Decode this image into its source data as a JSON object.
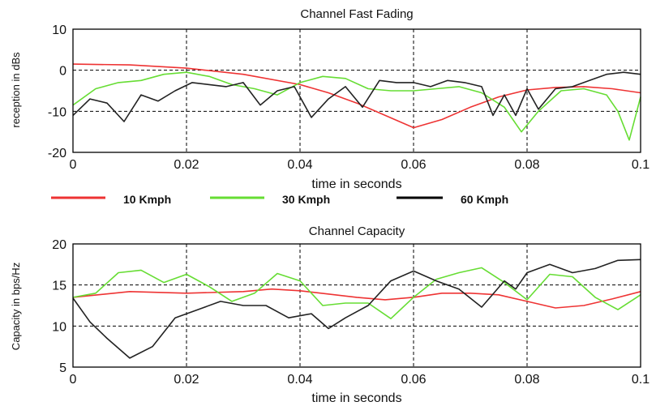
{
  "chart_data": [
    {
      "type": "line",
      "title": "Channel Fast Fading",
      "xlabel": "time in seconds",
      "ylabel": "reception in dBs",
      "xlim": [
        0,
        0.1
      ],
      "ylim": [
        -20,
        10
      ],
      "xticks": [
        "0",
        "0.02",
        "0.04",
        "0.06",
        "0.08",
        "0.1"
      ],
      "yticks": [
        "-20",
        "-10",
        "0",
        "10"
      ],
      "xtick_values": [
        0,
        0.02,
        0.04,
        0.06,
        0.08,
        0.1
      ],
      "ytick_values": [
        -20,
        -10,
        0,
        10
      ],
      "grid": true,
      "series": [
        {
          "name": "10 Kmph",
          "color": "#ee3333",
          "x": [
            0,
            0.01,
            0.02,
            0.03,
            0.04,
            0.045,
            0.05,
            0.055,
            0.06,
            0.065,
            0.07,
            0.075,
            0.08,
            0.085,
            0.09,
            0.095,
            0.1
          ],
          "y": [
            1.5,
            1.3,
            0.5,
            -1,
            -3.5,
            -5.5,
            -8,
            -11,
            -14,
            -12,
            -9,
            -6.5,
            -4.8,
            -4.2,
            -4,
            -4.5,
            -5.5
          ]
        },
        {
          "name": "30 Kmph",
          "color": "#66dd33",
          "x": [
            0,
            0.004,
            0.008,
            0.012,
            0.016,
            0.02,
            0.024,
            0.028,
            0.032,
            0.036,
            0.04,
            0.044,
            0.048,
            0.052,
            0.056,
            0.06,
            0.064,
            0.068,
            0.072,
            0.076,
            0.079,
            0.082,
            0.086,
            0.09,
            0.094,
            0.096,
            0.098,
            0.1
          ],
          "y": [
            -8.5,
            -4.5,
            -3,
            -2.5,
            -1,
            -0.5,
            -1.5,
            -3.5,
            -4.5,
            -6,
            -3,
            -1.5,
            -2,
            -4.5,
            -5,
            -5,
            -4.5,
            -4,
            -5.5,
            -9,
            -15,
            -10,
            -5,
            -4.5,
            -6,
            -10,
            -17,
            -6.5
          ]
        },
        {
          "name": "60 Kmph",
          "color": "#222222",
          "x": [
            0,
            0.003,
            0.006,
            0.009,
            0.012,
            0.015,
            0.018,
            0.021,
            0.024,
            0.027,
            0.03,
            0.033,
            0.036,
            0.039,
            0.042,
            0.045,
            0.048,
            0.051,
            0.054,
            0.057,
            0.06,
            0.063,
            0.066,
            0.069,
            0.072,
            0.074,
            0.076,
            0.078,
            0.08,
            0.082,
            0.085,
            0.088,
            0.091,
            0.094,
            0.097,
            0.1
          ],
          "y": [
            -11,
            -7,
            -8,
            -12.5,
            -6,
            -7.5,
            -5,
            -3,
            -3.5,
            -4,
            -3,
            -8.5,
            -5,
            -4,
            -11.5,
            -7,
            -4,
            -9,
            -2.5,
            -3,
            -3,
            -4,
            -2.5,
            -3,
            -4,
            -11,
            -6,
            -11,
            -4.5,
            -9.5,
            -4.5,
            -4,
            -2.5,
            -1,
            -0.5,
            -1
          ]
        }
      ]
    },
    {
      "type": "line",
      "title": "Channel Capacity",
      "xlabel": "time in seconds",
      "ylabel": "Capacity in bps/Hz",
      "xlim": [
        0,
        0.1
      ],
      "ylim": [
        5,
        20
      ],
      "xticks": [
        "0",
        "0.02",
        "0.04",
        "0.06",
        "0.08",
        "0.1"
      ],
      "yticks": [
        "5",
        "10",
        "15",
        "20"
      ],
      "xtick_values": [
        0,
        0.02,
        0.04,
        0.06,
        0.08,
        0.1
      ],
      "ytick_values": [
        5,
        10,
        15,
        20
      ],
      "grid": true,
      "series": [
        {
          "name": "10 Kmph",
          "color": "#ee3333",
          "x": [
            0,
            0.01,
            0.02,
            0.03,
            0.035,
            0.04,
            0.05,
            0.055,
            0.06,
            0.065,
            0.07,
            0.075,
            0.08,
            0.085,
            0.09,
            0.095,
            0.1
          ],
          "y": [
            13.5,
            14.2,
            14,
            14.2,
            14.5,
            14.3,
            13.5,
            13.2,
            13.5,
            14,
            14,
            13.8,
            13,
            12.2,
            12.5,
            13.3,
            14.2
          ]
        },
        {
          "name": "30 Kmph",
          "color": "#66dd33",
          "x": [
            0,
            0.004,
            0.008,
            0.012,
            0.016,
            0.02,
            0.024,
            0.028,
            0.032,
            0.036,
            0.04,
            0.044,
            0.048,
            0.052,
            0.056,
            0.06,
            0.064,
            0.068,
            0.072,
            0.076,
            0.08,
            0.084,
            0.088,
            0.092,
            0.096,
            0.1
          ],
          "y": [
            13.5,
            14,
            16.5,
            16.8,
            15.3,
            16.3,
            14.8,
            13,
            14,
            16.4,
            15.5,
            12.5,
            12.8,
            12.8,
            10.9,
            13.5,
            15.7,
            16.5,
            17.1,
            15.3,
            13.2,
            16.3,
            16,
            13.5,
            12,
            13.8
          ]
        },
        {
          "name": "60 Kmph",
          "color": "#222222",
          "x": [
            0,
            0.003,
            0.006,
            0.01,
            0.014,
            0.018,
            0.022,
            0.026,
            0.03,
            0.034,
            0.038,
            0.042,
            0.045,
            0.048,
            0.052,
            0.056,
            0.06,
            0.064,
            0.068,
            0.072,
            0.076,
            0.078,
            0.08,
            0.084,
            0.088,
            0.092,
            0.096,
            0.1
          ],
          "y": [
            13.4,
            10.5,
            8.5,
            6.1,
            7.5,
            11,
            12,
            13,
            12.5,
            12.5,
            11,
            11.5,
            9.7,
            11,
            12.5,
            15.5,
            16.7,
            15.5,
            14.5,
            12.3,
            15.5,
            14.5,
            16.5,
            17.5,
            16.5,
            17,
            18,
            18.1
          ]
        }
      ]
    }
  ],
  "legend": {
    "placement": "between-plots",
    "items": [
      {
        "label": "10 Kmph",
        "color": "#ee3333"
      },
      {
        "label": "30 Kmph",
        "color": "#66dd33"
      },
      {
        "label": "60 Kmph",
        "color": "#000000"
      }
    ]
  }
}
